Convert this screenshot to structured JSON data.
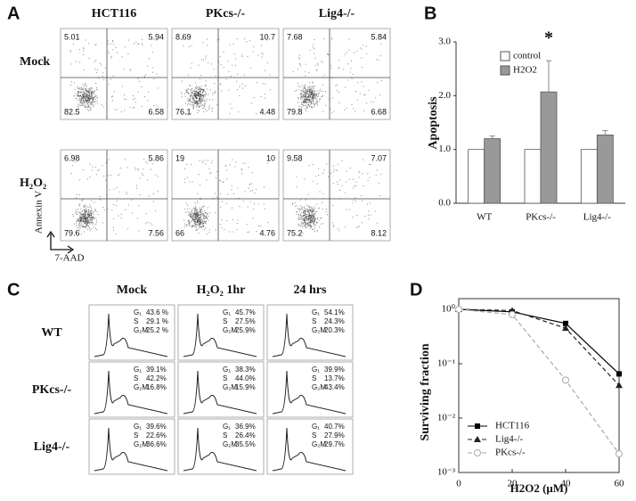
{
  "panel_a": {
    "letter": "A",
    "columns": [
      "HCT116",
      "PKcs-/-",
      "Lig4-/-"
    ],
    "rows": [
      "Mock",
      "H₂O₂"
    ],
    "quadrants": [
      [
        [
          "5.01",
          "5.94",
          "82.5",
          "6.58"
        ],
        [
          "8.69",
          "10.7",
          "76.1",
          "4.48"
        ],
        [
          "7.68",
          "5.84",
          "79.8",
          "6.68"
        ]
      ],
      [
        [
          "6.98",
          "5.86",
          "79.6",
          "7.56"
        ],
        [
          "19",
          "10",
          "66",
          "4.76"
        ],
        [
          "9.58",
          "7.07",
          "75.2",
          "8.12"
        ]
      ]
    ],
    "y_axis_label": "Annexin V",
    "x_axis_label": "7-AAD"
  },
  "panel_c": {
    "letter": "C",
    "columns": [
      "Mock",
      "H₂O₂ 1hr",
      "24 hrs"
    ],
    "rows": [
      "WT",
      "PKcs-/-",
      "Lig4-/-"
    ],
    "phase_labels": [
      "G₁",
      "S",
      "G₂M"
    ],
    "percentages": [
      [
        [
          "43.6 %",
          "29.1 %",
          "25.2 %"
        ],
        [
          "45.7%",
          "27.5%",
          "25.9%"
        ],
        [
          "54.1%",
          "24.3%",
          "20.3%"
        ]
      ],
      [
        [
          "39.1%",
          "42.2%",
          "16.8%"
        ],
        [
          "38.3%",
          "44.0%",
          "15.9%"
        ],
        [
          "39.9%",
          "13.7%",
          "43.4%"
        ]
      ],
      [
        [
          "39.6%",
          "22.6%",
          "36.6%"
        ],
        [
          "36.9%",
          "26.4%",
          "35.5%"
        ],
        [
          "40.7%",
          "27.9%",
          "29.7%"
        ]
      ]
    ]
  },
  "chart_data": [
    {
      "type": "bar",
      "panel_label": "B",
      "y_label": "Apoptosis",
      "annotation": "*",
      "categories": [
        "WT",
        "PKcs-/-",
        "Lig4-/-"
      ],
      "series": [
        {
          "name": "control",
          "color": "#ffffff",
          "values": [
            1,
            1,
            1
          ]
        },
        {
          "name": "H2O2",
          "color": "#999999",
          "values": [
            1.2,
            2.07,
            1.27
          ],
          "errors": [
            0.05,
            0.58,
            0.08
          ]
        }
      ],
      "ylim": [
        0,
        3
      ],
      "yticks": [
        {
          "value": 0,
          "label": "0.0"
        },
        {
          "value": 1,
          "label": "1.0"
        },
        {
          "value": 2,
          "label": "2.0"
        },
        {
          "value": 3,
          "label": "3.0"
        }
      ],
      "legend": "upper left"
    },
    {
      "type": "line",
      "panel_label": "D",
      "x_label": "H2O2 (μM)",
      "y_label": "Surviving fraction",
      "x": [
        0,
        20,
        40,
        60
      ],
      "xlim": [
        0,
        60
      ],
      "xticks": [
        0,
        20,
        40,
        60
      ],
      "ylim": [
        0.001,
        1
      ],
      "log_y": true,
      "yticks": [
        {
          "value": 1,
          "label": "10⁰"
        },
        {
          "value": 0.1,
          "label": "10⁻¹"
        },
        {
          "value": 0.01,
          "label": "10⁻²"
        },
        {
          "value": 0.001,
          "label": "10⁻³"
        }
      ],
      "legend": "lower left",
      "series": [
        {
          "name": "HCT116",
          "color": "#000000",
          "marker": "square",
          "dash": "solid",
          "values": [
            1,
            0.9,
            0.55,
            0.065
          ]
        },
        {
          "name": "Lig4-/-",
          "color": "#222222",
          "marker": "triangle",
          "dash": "dashed",
          "values": [
            1,
            0.95,
            0.45,
            0.04
          ]
        },
        {
          "name": "PKcs-/-",
          "color": "#aaaaaa",
          "marker": "open-circle",
          "dash": "dashed",
          "values": [
            1,
            0.8,
            0.05,
            0.0022
          ]
        }
      ]
    }
  ]
}
